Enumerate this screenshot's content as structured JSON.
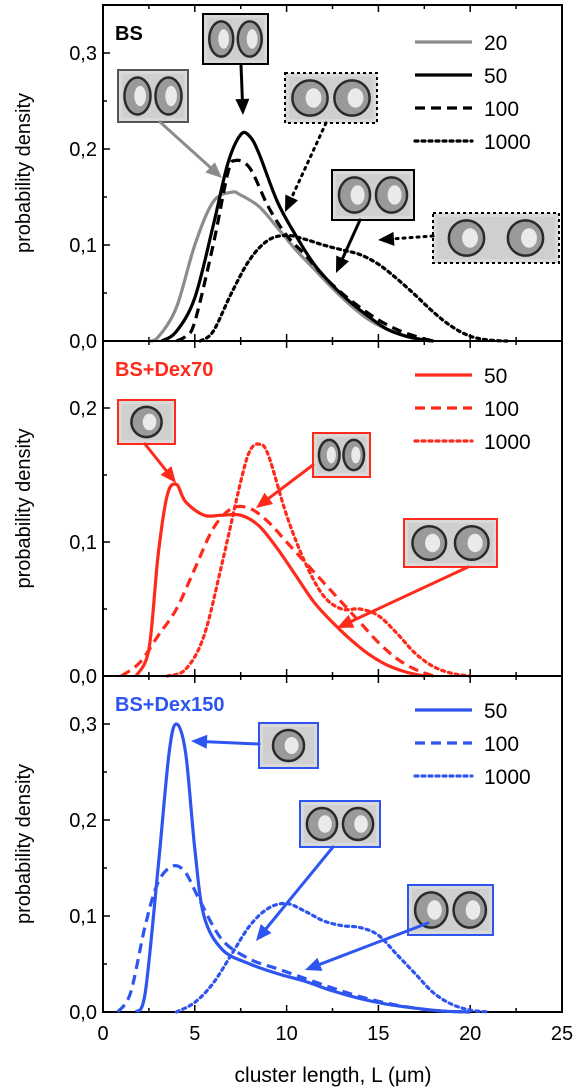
{
  "figure": {
    "xlabel": "cluster length, L (μm)",
    "x_ticks": [
      0,
      5,
      10,
      15,
      20,
      25
    ],
    "xlim": [
      0,
      25
    ]
  },
  "chart_data": [
    {
      "type": "line",
      "panel_label": "BS",
      "label_color": "#000000",
      "ylabel": "probability density",
      "ylim": [
        0,
        0.35
      ],
      "y_ticks": [
        "0,0",
        "0,1",
        "0,2",
        "0,3"
      ],
      "y_tick_values": [
        0,
        0.1,
        0.2,
        0.3
      ],
      "series": [
        {
          "name": "20",
          "color": "#8c8c8c",
          "dash": "solid",
          "points": [
            [
              2.5,
              0
            ],
            [
              3,
              0.004
            ],
            [
              4,
              0.035
            ],
            [
              5,
              0.1
            ],
            [
              6,
              0.145
            ],
            [
              7,
              0.155
            ],
            [
              7.5,
              0.152
            ],
            [
              8.5,
              0.14
            ],
            [
              9.5,
              0.118
            ],
            [
              10.5,
              0.095
            ],
            [
              11.5,
              0.075
            ],
            [
              12.5,
              0.055
            ],
            [
              13.5,
              0.037
            ],
            [
              14.5,
              0.022
            ],
            [
              15.5,
              0.012
            ],
            [
              16.5,
              0.005
            ],
            [
              17.5,
              0.001
            ],
            [
              18,
              0
            ]
          ]
        },
        {
          "name": "50",
          "color": "#000000",
          "dash": "solid",
          "points": [
            [
              3.2,
              0
            ],
            [
              4,
              0.01
            ],
            [
              5,
              0.045
            ],
            [
              6,
              0.12
            ],
            [
              6.8,
              0.185
            ],
            [
              7.5,
              0.215
            ],
            [
              8,
              0.213
            ],
            [
              8.5,
              0.195
            ],
            [
              9.5,
              0.145
            ],
            [
              10.5,
              0.11
            ],
            [
              11.5,
              0.08
            ],
            [
              12.5,
              0.058
            ],
            [
              13.5,
              0.04
            ],
            [
              14.5,
              0.025
            ],
            [
              15.5,
              0.012
            ],
            [
              16.5,
              0.005
            ],
            [
              17.5,
              0.001
            ],
            [
              18,
              0
            ]
          ]
        },
        {
          "name": "100",
          "color": "#000000",
          "dash": "dashed",
          "points": [
            [
              4,
              0
            ],
            [
              4.5,
              0.005
            ],
            [
              5,
              0.02
            ],
            [
              6,
              0.1
            ],
            [
              6.8,
              0.175
            ],
            [
              7.2,
              0.188
            ],
            [
              8,
              0.18
            ],
            [
              9,
              0.14
            ],
            [
              10,
              0.11
            ],
            [
              11,
              0.09
            ],
            [
              12,
              0.068
            ],
            [
              13,
              0.05
            ],
            [
              14,
              0.035
            ],
            [
              15,
              0.022
            ],
            [
              16,
              0.012
            ],
            [
              17,
              0.005
            ],
            [
              18,
              0
            ]
          ]
        },
        {
          "name": "1000",
          "color": "#000000",
          "dash": "dotted",
          "points": [
            [
              5.3,
              0
            ],
            [
              6,
              0.01
            ],
            [
              7,
              0.05
            ],
            [
              8,
              0.085
            ],
            [
              9,
              0.105
            ],
            [
              10,
              0.11
            ],
            [
              11,
              0.106
            ],
            [
              12,
              0.1
            ],
            [
              13,
              0.095
            ],
            [
              14,
              0.09
            ],
            [
              15,
              0.08
            ],
            [
              16,
              0.065
            ],
            [
              17,
              0.048
            ],
            [
              18,
              0.03
            ],
            [
              19,
              0.015
            ],
            [
              20,
              0.005
            ],
            [
              21,
              0.001
            ],
            [
              22,
              0
            ]
          ]
        }
      ]
    },
    {
      "type": "line",
      "panel_label": "BS+Dex70",
      "label_color": "#ff2a1a",
      "ylabel": "probability density",
      "ylim": [
        0,
        0.25
      ],
      "y_ticks": [
        "0,0",
        "0,1",
        "0,2"
      ],
      "y_tick_values": [
        0,
        0.1,
        0.2
      ],
      "series": [
        {
          "name": "50",
          "color": "#ff2a1a",
          "dash": "solid",
          "points": [
            [
              1.8,
              0
            ],
            [
              2.5,
              0.02
            ],
            [
              3,
              0.09
            ],
            [
              3.5,
              0.135
            ],
            [
              4,
              0.143
            ],
            [
              4.5,
              0.13
            ],
            [
              5.5,
              0.12
            ],
            [
              6.5,
              0.12
            ],
            [
              7.5,
              0.12
            ],
            [
              8.5,
              0.112
            ],
            [
              9.5,
              0.095
            ],
            [
              10.5,
              0.075
            ],
            [
              11.5,
              0.055
            ],
            [
              12.5,
              0.04
            ],
            [
              13.5,
              0.027
            ],
            [
              14.5,
              0.016
            ],
            [
              15.5,
              0.008
            ],
            [
              16.5,
              0.003
            ],
            [
              17.5,
              0
            ]
          ]
        },
        {
          "name": "100",
          "color": "#ff2a1a",
          "dash": "dashed",
          "points": [
            [
              1,
              0
            ],
            [
              2,
              0.01
            ],
            [
              3,
              0.03
            ],
            [
              4,
              0.05
            ],
            [
              5,
              0.08
            ],
            [
              6,
              0.11
            ],
            [
              7,
              0.125
            ],
            [
              8,
              0.125
            ],
            [
              9,
              0.115
            ],
            [
              10,
              0.1
            ],
            [
              11,
              0.085
            ],
            [
              12,
              0.07
            ],
            [
              13,
              0.055
            ],
            [
              14,
              0.04
            ],
            [
              15,
              0.025
            ],
            [
              16,
              0.013
            ],
            [
              17,
              0.005
            ],
            [
              18,
              0
            ]
          ]
        },
        {
          "name": "1000",
          "color": "#ff2a1a",
          "dash": "dotted",
          "points": [
            [
              3.5,
              0
            ],
            [
              4.5,
              0.005
            ],
            [
              5.5,
              0.03
            ],
            [
              6.5,
              0.085
            ],
            [
              7.5,
              0.145
            ],
            [
              8,
              0.168
            ],
            [
              8.5,
              0.173
            ],
            [
              9,
              0.165
            ],
            [
              10,
              0.12
            ],
            [
              11,
              0.085
            ],
            [
              12,
              0.06
            ],
            [
              13,
              0.05
            ],
            [
              14,
              0.05
            ],
            [
              15,
              0.045
            ],
            [
              16,
              0.032
            ],
            [
              17,
              0.017
            ],
            [
              18,
              0.007
            ],
            [
              19,
              0.002
            ],
            [
              20,
              0
            ]
          ]
        }
      ]
    },
    {
      "type": "line",
      "panel_label": "BS+Dex150",
      "label_color": "#2e55f0",
      "ylabel": "probability density",
      "ylim": [
        0,
        0.35
      ],
      "y_ticks": [
        "0,0",
        "0,1",
        "0,2",
        "0,3"
      ],
      "y_tick_values": [
        0,
        0.1,
        0.2,
        0.3
      ],
      "series": [
        {
          "name": "50",
          "color": "#2e55f0",
          "dash": "solid",
          "points": [
            [
              1.8,
              0
            ],
            [
              2.3,
              0.02
            ],
            [
              3,
              0.15
            ],
            [
              3.6,
              0.27
            ],
            [
              4,
              0.3
            ],
            [
              4.5,
              0.27
            ],
            [
              5,
              0.17
            ],
            [
              5.5,
              0.1
            ],
            [
              6.5,
              0.065
            ],
            [
              8,
              0.05
            ],
            [
              9.5,
              0.04
            ],
            [
              11,
              0.032
            ],
            [
              12.5,
              0.022
            ],
            [
              14,
              0.014
            ],
            [
              15.5,
              0.008
            ],
            [
              17,
              0.004
            ],
            [
              18.5,
              0.001
            ],
            [
              20,
              0
            ]
          ]
        },
        {
          "name": "100",
          "color": "#2e55f0",
          "dash": "dashed",
          "points": [
            [
              0.8,
              0
            ],
            [
              1.5,
              0.02
            ],
            [
              2.3,
              0.09
            ],
            [
              3,
              0.135
            ],
            [
              3.8,
              0.152
            ],
            [
              4.5,
              0.145
            ],
            [
              5.3,
              0.115
            ],
            [
              6.5,
              0.075
            ],
            [
              8,
              0.055
            ],
            [
              9.5,
              0.045
            ],
            [
              11,
              0.035
            ],
            [
              12.5,
              0.025
            ],
            [
              14,
              0.016
            ],
            [
              15.5,
              0.009
            ],
            [
              17,
              0.004
            ],
            [
              18.5,
              0.001
            ],
            [
              20,
              0
            ]
          ]
        },
        {
          "name": "1000",
          "color": "#2e55f0",
          "dash": "dotted",
          "points": [
            [
              4,
              0
            ],
            [
              5,
              0.01
            ],
            [
              6,
              0.03
            ],
            [
              7,
              0.06
            ],
            [
              8,
              0.09
            ],
            [
              9,
              0.108
            ],
            [
              10,
              0.113
            ],
            [
              11,
              0.105
            ],
            [
              12,
              0.095
            ],
            [
              13,
              0.09
            ],
            [
              14,
              0.088
            ],
            [
              15,
              0.08
            ],
            [
              16,
              0.06
            ],
            [
              17,
              0.04
            ],
            [
              18,
              0.02
            ],
            [
              19,
              0.008
            ],
            [
              20,
              0.002
            ],
            [
              21,
              0
            ]
          ]
        }
      ]
    }
  ]
}
